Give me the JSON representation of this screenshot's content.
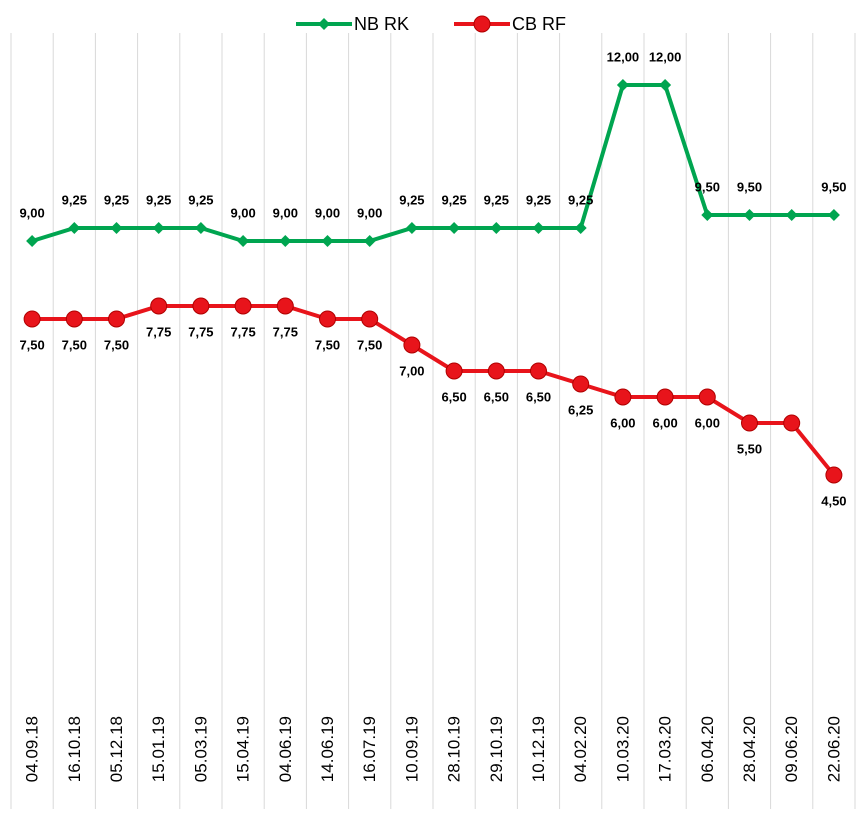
{
  "chart_data": {
    "type": "line",
    "categories": [
      "04.09.18",
      "16.10.18",
      "05.12.18",
      "15.01.19",
      "05.03.19",
      "15.04.19",
      "04.06.19",
      "14.06.19",
      "16.07.19",
      "10.09.19",
      "28.10.19",
      "29.10.19",
      "10.12.19",
      "04.02.20",
      "10.03.20",
      "17.03.20",
      "06.04.20",
      "28.04.20",
      "09.06.20",
      "22.06.20"
    ],
    "series": [
      {
        "name": "NB RK",
        "color": "#00a550",
        "marker": "diamond",
        "values": [
          9,
          9.25,
          9.25,
          9.25,
          9.25,
          9,
          9,
          9,
          9,
          9.25,
          9.25,
          9.25,
          9.25,
          9.25,
          12,
          12,
          9.5,
          9.5,
          9.5,
          9.5
        ],
        "value_labels": [
          "9,00",
          "9,25",
          "9,25",
          "9,25",
          "9,25",
          "9,00",
          "9,00",
          "9,00",
          "9,00",
          "9,25",
          "9,25",
          "9,25",
          "9,25",
          "9,25",
          "12,00",
          "12,00",
          "9,50",
          "9,50",
          null,
          "9,50"
        ]
      },
      {
        "name": "CB RF",
        "color": "#e8141b",
        "marker": "circle",
        "values": [
          7.5,
          7.5,
          7.5,
          7.75,
          7.75,
          7.75,
          7.75,
          7.5,
          7.5,
          7,
          6.5,
          6.5,
          6.5,
          6.25,
          6,
          6,
          6,
          5.5,
          5.5,
          4.5
        ],
        "value_labels": [
          "7,50",
          "7,50",
          "7,50",
          "7,75",
          "7,75",
          "7,75",
          "7,75",
          "7,50",
          "7,50",
          "7,00",
          "6,50",
          "6,50",
          "6,50",
          "6,25",
          "6,00",
          "6,00",
          "6,00",
          "5,50",
          null,
          "4,50"
        ]
      }
    ],
    "ylim": [
      0,
      13
    ],
    "grid": true,
    "legend": "top"
  }
}
